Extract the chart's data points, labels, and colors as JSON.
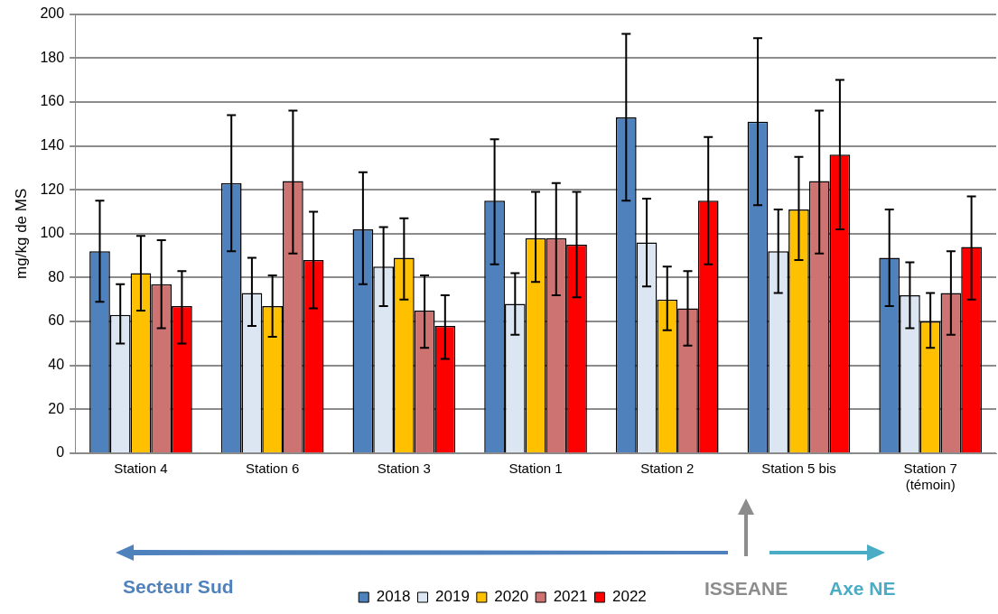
{
  "chart_data": {
    "type": "bar",
    "ylabel": "mg/kg de MS",
    "categories": [
      "Station 4",
      "Station 6",
      "Station 3",
      "Station 1",
      "Station 2",
      "Station 5 bis",
      "Station 7\n(témoin)"
    ],
    "series": [
      {
        "name": "2018",
        "color": "#4f81bd",
        "values": [
          92,
          123,
          102,
          115,
          153,
          151,
          89
        ],
        "errors": [
          [
            69,
            115
          ],
          [
            92,
            154
          ],
          [
            77,
            128
          ],
          [
            86,
            143
          ],
          [
            115,
            191
          ],
          [
            113,
            189
          ],
          [
            67,
            111
          ]
        ]
      },
      {
        "name": "2019",
        "color": "#dce6f2",
        "values": [
          63,
          73,
          85,
          68,
          96,
          92,
          72
        ],
        "errors": [
          [
            50,
            77
          ],
          [
            58,
            89
          ],
          [
            67,
            103
          ],
          [
            54,
            82
          ],
          [
            76,
            116
          ],
          [
            73,
            111
          ],
          [
            57,
            87
          ]
        ]
      },
      {
        "name": "2020",
        "color": "#ffc000",
        "values": [
          82,
          67,
          89,
          98,
          70,
          111,
          60
        ],
        "errors": [
          [
            65,
            99
          ],
          [
            53,
            81
          ],
          [
            70,
            107
          ],
          [
            78,
            119
          ],
          [
            56,
            85
          ],
          [
            88,
            135
          ],
          [
            48,
            73
          ]
        ]
      },
      {
        "name": "2021",
        "color": "#cd7371",
        "values": [
          77,
          124,
          65,
          98,
          66,
          124,
          73
        ],
        "errors": [
          [
            57,
            97
          ],
          [
            91,
            156
          ],
          [
            48,
            81
          ],
          [
            72,
            123
          ],
          [
            49,
            83
          ],
          [
            91,
            156
          ],
          [
            54,
            92
          ]
        ]
      },
      {
        "name": "2022",
        "color": "#ff0000",
        "values": [
          67,
          88,
          58,
          95,
          115,
          136,
          94
        ],
        "errors": [
          [
            50,
            83
          ],
          [
            66,
            110
          ],
          [
            43,
            72
          ],
          [
            71,
            119
          ],
          [
            86,
            144
          ],
          [
            102,
            170
          ],
          [
            70,
            117
          ]
        ]
      }
    ],
    "ylim": [
      0,
      200
    ],
    "yticks": [
      0,
      20,
      40,
      60,
      80,
      100,
      120,
      140,
      160,
      180,
      200
    ],
    "grid": "y",
    "legend": "bottom",
    "annotations": [
      "Secteur Sud",
      "ISSEANE",
      "Axe NE"
    ]
  }
}
